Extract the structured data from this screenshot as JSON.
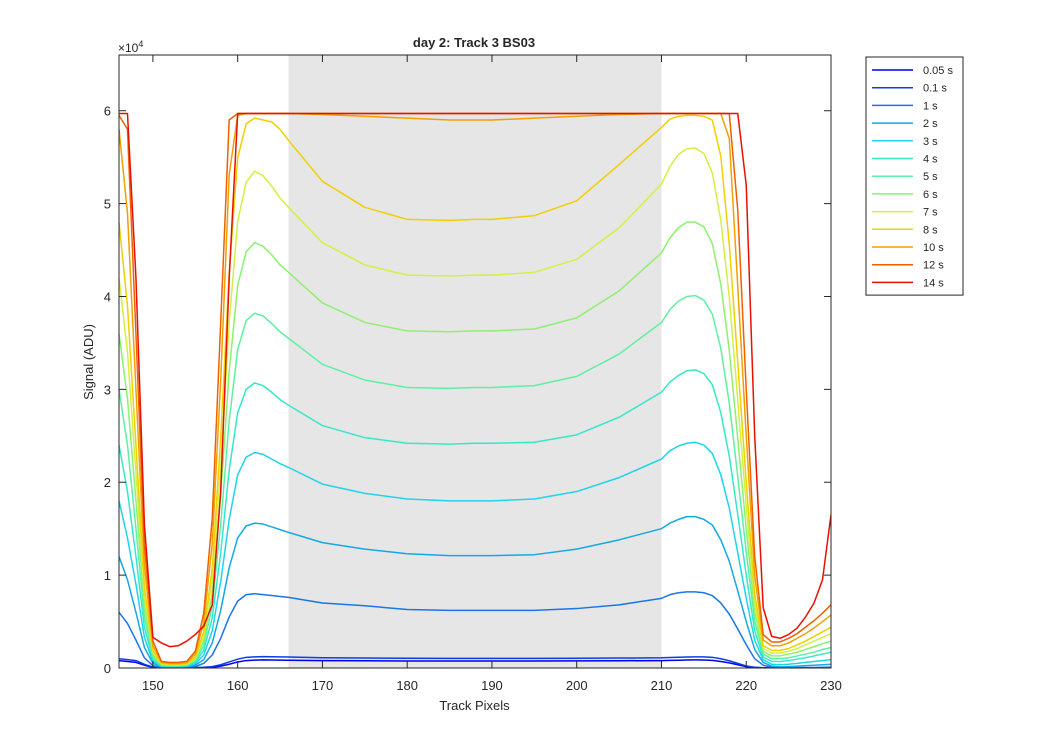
{
  "chart_data": {
    "type": "line",
    "title": "day 2: Track 3  BS03",
    "xlabel": "Track Pixels",
    "ylabel": "Signal (ADU)",
    "y_exponent_label": "×10",
    "y_exponent_power": "4",
    "xlim": [
      146,
      230
    ],
    "ylim": [
      0,
      66000
    ],
    "xticks": [
      150,
      160,
      170,
      180,
      190,
      200,
      210,
      220,
      230
    ],
    "yticks": [
      0,
      10000,
      20000,
      30000,
      40000,
      50000,
      60000
    ],
    "ytick_labels": [
      "0",
      "1",
      "2",
      "3",
      "4",
      "5",
      "6"
    ],
    "grid": false,
    "legend_position": "outside-right-top",
    "shaded_region": {
      "x": [
        166,
        210
      ],
      "color": "#e6e6e6"
    },
    "x": [
      146,
      147,
      148,
      149,
      150,
      151,
      152,
      153,
      154,
      155,
      156,
      157,
      158,
      159,
      160,
      161,
      162,
      163,
      164,
      165,
      166,
      170,
      175,
      180,
      185,
      188,
      190,
      195,
      200,
      205,
      210,
      211,
      212,
      213,
      214,
      215,
      216,
      217,
      218,
      219,
      220,
      221,
      222,
      223,
      224,
      225,
      226,
      227,
      228,
      229,
      230
    ],
    "series": [
      {
        "name": "0.05 s",
        "color": "#0000ee",
        "values": [
          800,
          700,
          600,
          300,
          80,
          20,
          20,
          20,
          20,
          30,
          50,
          100,
          200,
          400,
          650,
          800,
          850,
          870,
          860,
          850,
          830,
          800,
          780,
          760,
          760,
          760,
          760,
          760,
          770,
          780,
          800,
          820,
          840,
          860,
          870,
          860,
          820,
          700,
          550,
          350,
          150,
          50,
          20,
          20,
          20,
          20,
          20,
          20,
          20,
          20,
          20
        ]
      },
      {
        "name": "0.1 s",
        "color": "#0a3dea",
        "values": [
          1000,
          900,
          800,
          400,
          100,
          30,
          30,
          30,
          30,
          40,
          80,
          150,
          350,
          650,
          950,
          1150,
          1200,
          1220,
          1210,
          1200,
          1180,
          1100,
          1070,
          1050,
          1040,
          1040,
          1040,
          1040,
          1050,
          1070,
          1100,
          1130,
          1160,
          1190,
          1200,
          1200,
          1150,
          1000,
          780,
          500,
          220,
          80,
          30,
          20,
          20,
          20,
          20,
          20,
          20,
          20,
          20
        ]
      },
      {
        "name": "1 s",
        "color": "#1a75e6",
        "values": [
          6000,
          4800,
          3000,
          1100,
          250,
          60,
          50,
          50,
          60,
          150,
          500,
          1400,
          3200,
          5500,
          7200,
          7900,
          8000,
          7900,
          7800,
          7700,
          7600,
          7000,
          6700,
          6300,
          6200,
          6200,
          6200,
          6200,
          6400,
          6800,
          7500,
          7900,
          8100,
          8200,
          8200,
          8100,
          7800,
          7000,
          5800,
          4200,
          2500,
          1000,
          300,
          80,
          50,
          50,
          50,
          50,
          60,
          80,
          100
        ]
      },
      {
        "name": "2 s",
        "color": "#14a8e6",
        "values": [
          12000,
          9500,
          6000,
          2200,
          500,
          120,
          100,
          100,
          120,
          300,
          900,
          2700,
          6200,
          10800,
          14000,
          15300,
          15600,
          15500,
          15200,
          14900,
          14600,
          13500,
          12800,
          12300,
          12100,
          12100,
          12100,
          12200,
          12800,
          13800,
          15000,
          15600,
          16000,
          16300,
          16300,
          16000,
          15400,
          13800,
          11500,
          8300,
          5000,
          2000,
          600,
          200,
          120,
          150,
          200,
          250,
          300,
          350,
          400
        ]
      },
      {
        "name": "3 s",
        "color": "#1ed4ea",
        "values": [
          18000,
          14000,
          9000,
          3300,
          700,
          180,
          150,
          150,
          180,
          450,
          1400,
          4000,
          9300,
          16000,
          20800,
          22700,
          23200,
          23000,
          22500,
          22000,
          21600,
          19800,
          18800,
          18200,
          18000,
          18000,
          18000,
          18200,
          19000,
          20500,
          22500,
          23400,
          23900,
          24200,
          24300,
          24000,
          23100,
          20800,
          17200,
          12400,
          7500,
          3000,
          900,
          400,
          350,
          400,
          500,
          600,
          700,
          800,
          900
        ]
      },
      {
        "name": "4 s",
        "color": "#35e8c8",
        "values": [
          24000,
          19000,
          12000,
          4400,
          950,
          240,
          200,
          200,
          250,
          600,
          1900,
          5400,
          12400,
          21300,
          27500,
          30000,
          30700,
          30400,
          29700,
          28900,
          28300,
          26100,
          24800,
          24200,
          24100,
          24200,
          24200,
          24300,
          25100,
          27000,
          29700,
          30800,
          31500,
          32000,
          32100,
          31700,
          30500,
          27500,
          22800,
          16500,
          10000,
          4000,
          1200,
          700,
          700,
          800,
          950,
          1100,
          1300,
          1500,
          1700
        ]
      },
      {
        "name": "5 s",
        "color": "#5ef0a0",
        "values": [
          30000,
          24000,
          15000,
          5500,
          1200,
          300,
          250,
          250,
          300,
          750,
          2400,
          6700,
          15500,
          26600,
          34300,
          37400,
          38200,
          37900,
          37100,
          36200,
          35500,
          32700,
          31000,
          30200,
          30100,
          30200,
          30200,
          30400,
          31400,
          33800,
          37200,
          38600,
          39500,
          40000,
          40100,
          39600,
          38100,
          34400,
          28500,
          20600,
          12500,
          5000,
          1500,
          1000,
          1000,
          1100,
          1300,
          1500,
          1700,
          2000,
          2200
        ]
      },
      {
        "name": "6 s",
        "color": "#8ef070",
        "values": [
          36000,
          29000,
          18000,
          6600,
          1400,
          360,
          300,
          300,
          360,
          900,
          2900,
          8000,
          18600,
          31900,
          41200,
          44800,
          45800,
          45400,
          44500,
          43400,
          42600,
          39300,
          37200,
          36300,
          36200,
          36300,
          36300,
          36500,
          37700,
          40600,
          44700,
          46300,
          47400,
          48000,
          48000,
          47500,
          45700,
          41300,
          34200,
          24700,
          15000,
          6000,
          1800,
          1300,
          1300,
          1500,
          1700,
          2000,
          2300,
          2600,
          2900
        ]
      },
      {
        "name": "7 s",
        "color": "#d4f040",
        "values": [
          42000,
          34000,
          21000,
          7700,
          1700,
          420,
          350,
          350,
          420,
          1050,
          3400,
          9400,
          21700,
          37200,
          48100,
          52300,
          53500,
          53000,
          51900,
          50600,
          49600,
          45800,
          43400,
          42300,
          42200,
          42300,
          42300,
          42600,
          44000,
          47400,
          52100,
          54000,
          55300,
          55900,
          56000,
          55400,
          53300,
          48200,
          39900,
          28800,
          17500,
          7000,
          2100,
          1600,
          1600,
          1800,
          2100,
          2500,
          2900,
          3300,
          3700
        ]
      },
      {
        "name": "8 s",
        "color": "#f0d000",
        "values": [
          48000,
          39000,
          24000,
          8800,
          1900,
          480,
          400,
          400,
          480,
          1200,
          3900,
          10700,
          24800,
          42500,
          54900,
          58600,
          59200,
          59000,
          58800,
          58000,
          56800,
          52400,
          49600,
          48300,
          48200,
          48300,
          48300,
          48700,
          50300,
          54200,
          58200,
          59100,
          59400,
          59500,
          59500,
          59400,
          59000,
          55100,
          45600,
          32900,
          20000,
          8000,
          2400,
          1900,
          1900,
          2100,
          2500,
          2900,
          3400,
          3900,
          4400
        ]
      },
      {
        "name": "10 s",
        "color": "#f0a000",
        "values": [
          58000,
          49000,
          30000,
          11000,
          2400,
          600,
          500,
          500,
          600,
          1500,
          4900,
          13400,
          31000,
          53100,
          59500,
          59700,
          59700,
          59700,
          59700,
          59700,
          59700,
          59600,
          59400,
          59200,
          59000,
          59000,
          59000,
          59200,
          59400,
          59600,
          59700,
          59700,
          59700,
          59700,
          59700,
          59700,
          59700,
          59700,
          57000,
          41100,
          25000,
          10000,
          3000,
          2400,
          2400,
          2700,
          3200,
          3700,
          4300,
          5000,
          5700
        ]
      },
      {
        "name": "12 s",
        "color": "#f06000",
        "values": [
          59500,
          58000,
          36000,
          13200,
          2900,
          720,
          600,
          600,
          720,
          1800,
          5900,
          16100,
          37200,
          59000,
          59700,
          59700,
          59700,
          59700,
          59700,
          59700,
          59700,
          59700,
          59700,
          59700,
          59700,
          59700,
          59700,
          59700,
          59700,
          59700,
          59700,
          59700,
          59700,
          59700,
          59700,
          59700,
          59700,
          59700,
          59700,
          49300,
          30000,
          12000,
          3600,
          2800,
          2800,
          3200,
          3700,
          4400,
          5100,
          5900,
          6800
        ]
      },
      {
        "name": "14 s",
        "color": "#e81000",
        "values": [
          59700,
          59700,
          42000,
          15400,
          3300,
          2700,
          2300,
          2400,
          2900,
          3600,
          4500,
          6800,
          19000,
          42000,
          59700,
          59700,
          59700,
          59700,
          59700,
          59700,
          59700,
          59700,
          59700,
          59700,
          59700,
          59700,
          59700,
          59700,
          59700,
          59700,
          59700,
          59700,
          59700,
          59700,
          59700,
          59700,
          59700,
          59700,
          59700,
          59700,
          52000,
          25000,
          6500,
          3400,
          3200,
          3600,
          4300,
          5500,
          7000,
          9500,
          16500
        ]
      }
    ]
  }
}
